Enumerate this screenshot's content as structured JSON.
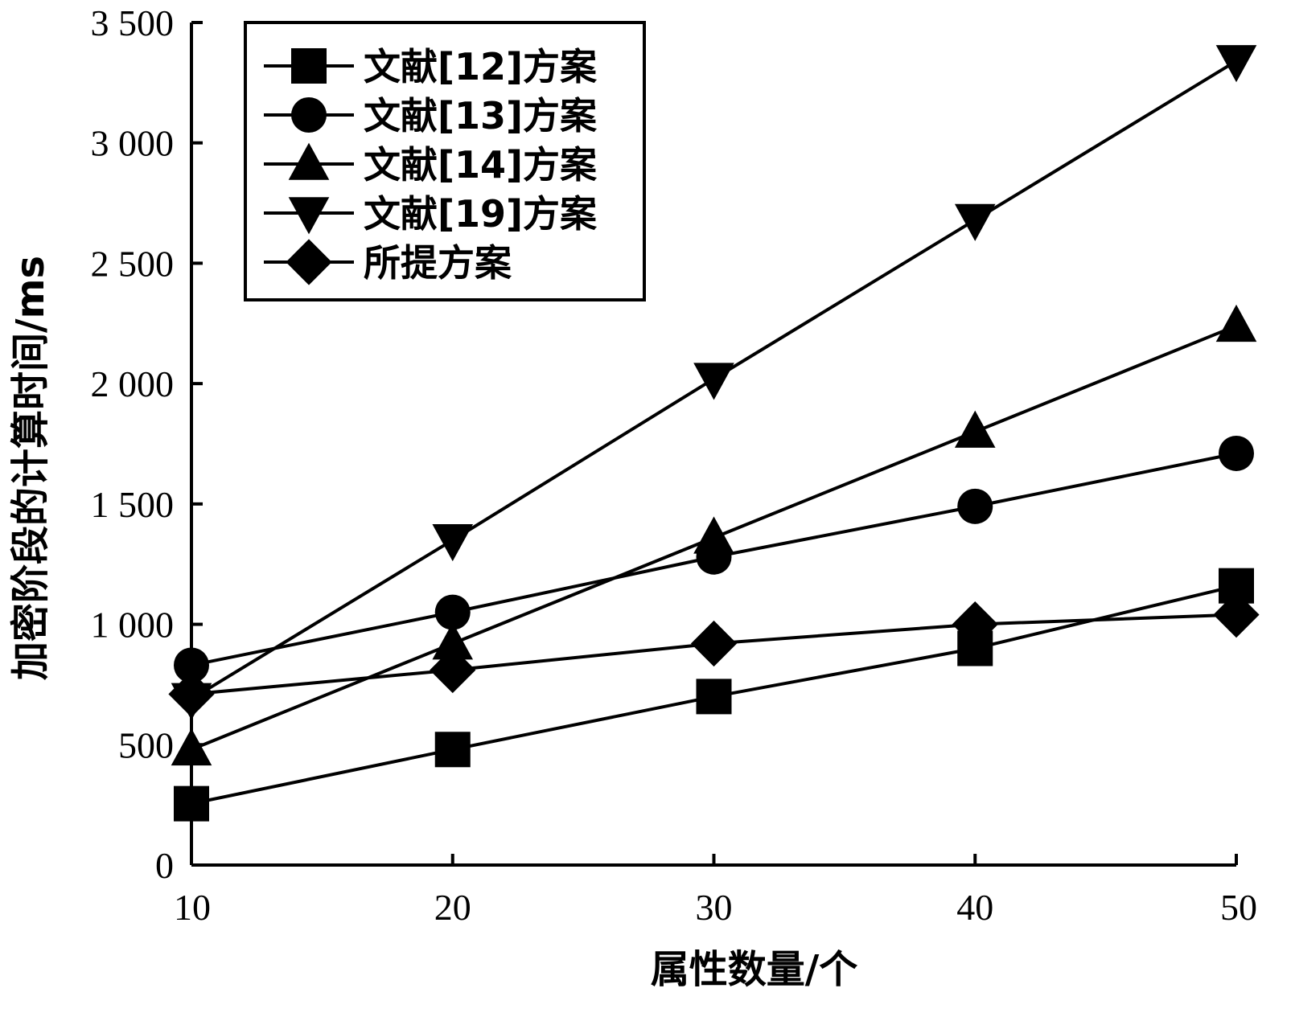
{
  "chart_data": {
    "type": "line",
    "title": "",
    "xlabel": "属性数量/个",
    "ylabel": "加密阶段的计算时间/ms",
    "x": [
      10,
      20,
      30,
      40,
      50
    ],
    "xlim": [
      10,
      50
    ],
    "ylim": [
      0,
      3500
    ],
    "xticks": [
      10,
      20,
      30,
      40,
      50
    ],
    "xtick_labels": [
      "10",
      "20",
      "30",
      "40",
      "50"
    ],
    "yticks": [
      0,
      500,
      1000,
      1500,
      2000,
      2500,
      3000,
      3500
    ],
    "ytick_labels": [
      "0",
      "500",
      "1 000",
      "1 500",
      "2 000",
      "2 500",
      "3 000",
      "3 500"
    ],
    "grid": false,
    "legend_position": "top-left",
    "series": [
      {
        "name": "文献[12]方案",
        "marker": "square",
        "values": [
          255,
          480,
          700,
          900,
          1160
        ]
      },
      {
        "name": "文献[13]方案",
        "marker": "circle",
        "values": [
          830,
          1050,
          1280,
          1490,
          1710
        ]
      },
      {
        "name": "文献[14]方案",
        "marker": "triangle-up",
        "values": [
          480,
          920,
          1360,
          1800,
          2240
        ]
      },
      {
        "name": "文献[19]方案",
        "marker": "triangle-down",
        "values": [
          690,
          1350,
          2020,
          2680,
          3340
        ]
      },
      {
        "name": "所提方案",
        "marker": "diamond",
        "values": [
          710,
          810,
          920,
          1000,
          1040
        ]
      }
    ]
  }
}
